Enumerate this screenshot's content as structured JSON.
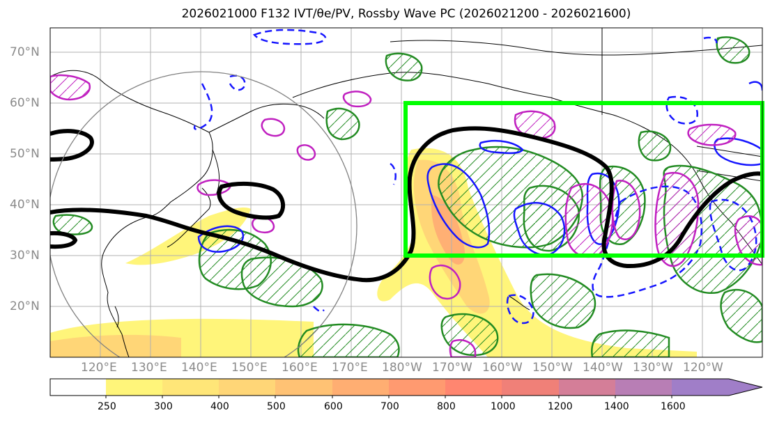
{
  "title": "2026021000 F132 IVT/θe/PV, Rossby Wave PC (2026021200 - 2026021600)",
  "map": {
    "lat_labels": [
      "70°N",
      "60°N",
      "50°N",
      "40°N",
      "30°N",
      "20°N"
    ],
    "lon_labels": [
      "120°E",
      "130°E",
      "140°E",
      "150°E",
      "160°E",
      "170°E",
      "180°W",
      "170°W",
      "160°W",
      "150°W",
      "140°W",
      "130°W",
      "120°W"
    ],
    "colors": {
      "waveguide": "#000000",
      "box": "#00ff00",
      "green_contour": "#228b22",
      "blue_contour": "#1515ff",
      "magenta_contour": "#c020c0",
      "circle": "#808080"
    }
  },
  "colorbar": {
    "labels": [
      "250",
      "300",
      "400",
      "500",
      "600",
      "700",
      "800",
      "1000",
      "1200",
      "1400",
      "1600"
    ],
    "colors": [
      "#ffffff",
      "#fff57a",
      "#ffe678",
      "#ffd677",
      "#ffc274",
      "#ffae72",
      "#ff9a70",
      "#ff8670",
      "#f08078",
      "#d47e98",
      "#b87eb5",
      "#a07ec8"
    ]
  }
}
